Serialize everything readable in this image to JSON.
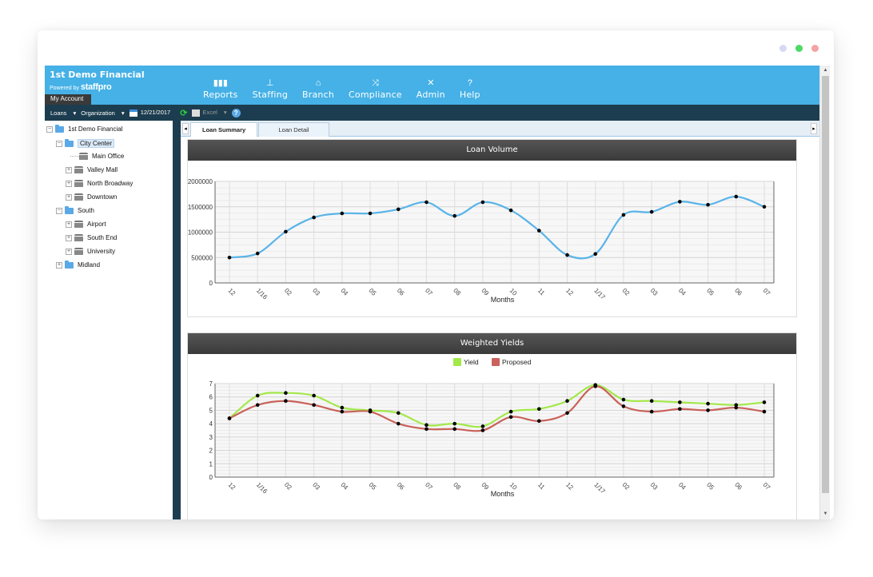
{
  "window_controls": {
    "dot1": "#d6d8f5",
    "dot2": "#4cd964",
    "dot3": "#f5a3a3"
  },
  "brand": {
    "name": "1st Demo Financial",
    "powered_by": "Powered by",
    "product": "staffpro",
    "my_account": "My Account"
  },
  "nav": [
    {
      "label": "Reports",
      "icon": "bar-chart-icon"
    },
    {
      "label": "Staffing",
      "icon": "org-chart-icon"
    },
    {
      "label": "Branch",
      "icon": "bank-icon"
    },
    {
      "label": "Compliance",
      "icon": "shuffle-icon"
    },
    {
      "label": "Admin",
      "icon": "tools-icon"
    },
    {
      "label": "Help",
      "icon": "help-icon"
    }
  ],
  "toolbar": {
    "loans": "Loans",
    "organization": "Organization",
    "date": "12/21/2017",
    "excel": "Excel"
  },
  "tree": [
    {
      "label": "1st Demo Financial",
      "type": "root",
      "toggle": "⊟"
    },
    {
      "label": "City Center",
      "type": "folder",
      "toggle": "⊟",
      "selected": true
    },
    {
      "label": "Main Office",
      "type": "branch",
      "toggle": ""
    },
    {
      "label": "Valley Mall",
      "type": "branch",
      "toggle": "⊞"
    },
    {
      "label": "North Broadway",
      "type": "branch",
      "toggle": "⊞"
    },
    {
      "label": "Downtown",
      "type": "branch",
      "toggle": "⊞"
    },
    {
      "label": "South",
      "type": "folder",
      "toggle": "⊟"
    },
    {
      "label": "Airport",
      "type": "branch",
      "toggle": "⊞"
    },
    {
      "label": "South End",
      "type": "branch",
      "toggle": "⊞"
    },
    {
      "label": "University",
      "type": "branch",
      "toggle": "⊞"
    },
    {
      "label": "Midland",
      "type": "folder",
      "toggle": "⊞"
    }
  ],
  "tabs": [
    {
      "label": "Loan Summary",
      "active": true
    },
    {
      "label": "Loan Detail",
      "active": false
    }
  ],
  "chart_data": [
    {
      "type": "line",
      "title": "Loan Volume",
      "xlabel": "Months",
      "ylabel": "",
      "ylim": [
        0,
        2000000
      ],
      "yticks": [
        "0",
        "500000",
        "1000000",
        "1500000",
        "2000000"
      ],
      "categories": [
        "12",
        "1/16",
        "02",
        "03",
        "04",
        "05",
        "06",
        "07",
        "08",
        "09",
        "10",
        "11",
        "12",
        "1/17",
        "02",
        "03",
        "04",
        "05",
        "06",
        "07"
      ],
      "series": [
        {
          "color": "#5ab4e8",
          "values": [
            500000,
            580000,
            1010000,
            1290000,
            1370000,
            1370000,
            1450000,
            1590000,
            1320000,
            1590000,
            1430000,
            1030000,
            550000,
            570000,
            1340000,
            1400000,
            1600000,
            1540000,
            1700000,
            1500000
          ]
        }
      ],
      "grid": true
    },
    {
      "type": "line",
      "title": "Weighted Yields",
      "xlabel": "Months",
      "ylabel": "",
      "ylim": [
        0,
        7
      ],
      "yticks": [
        "0",
        "1",
        "2",
        "3",
        "4",
        "5",
        "6",
        "7"
      ],
      "legend": "top",
      "categories": [
        "12",
        "1/16",
        "02",
        "03",
        "04",
        "05",
        "06",
        "07",
        "08",
        "09",
        "10",
        "11",
        "12",
        "1/17",
        "02",
        "03",
        "04",
        "05",
        "06",
        "07"
      ],
      "series": [
        {
          "name": "Yield",
          "color": "#a3e84a",
          "values": [
            4.4,
            6.1,
            6.3,
            6.1,
            5.2,
            5.0,
            4.8,
            3.9,
            4.0,
            3.8,
            4.9,
            5.1,
            5.7,
            6.9,
            5.8,
            5.7,
            5.6,
            5.5,
            5.4,
            5.6
          ]
        },
        {
          "name": "Proposed",
          "color": "#c9625a",
          "values": [
            4.4,
            5.4,
            5.7,
            5.4,
            4.9,
            4.9,
            4.0,
            3.6,
            3.6,
            3.5,
            4.5,
            4.2,
            4.8,
            6.8,
            5.3,
            4.9,
            5.1,
            5.0,
            5.2,
            4.9
          ]
        }
      ],
      "grid": true
    }
  ]
}
